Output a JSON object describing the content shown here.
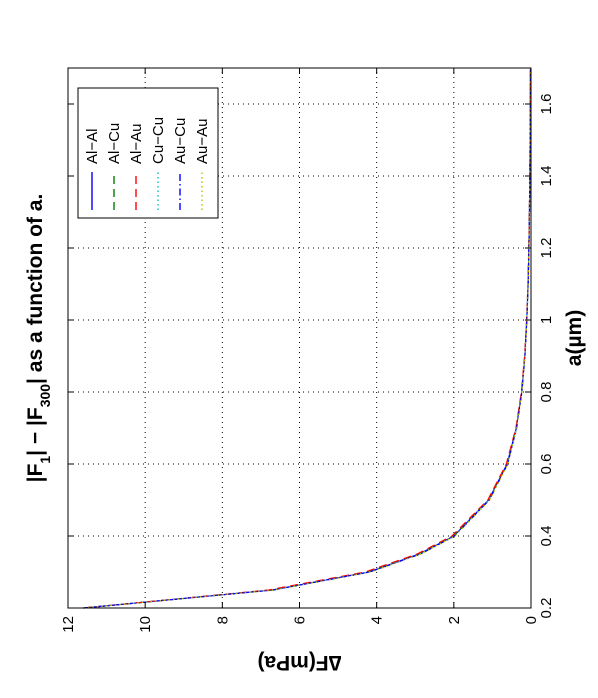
{
  "chart_data": {
    "type": "line",
    "title": {
      "prefix": "|F",
      "sub1": "1",
      "middle": "| − |F",
      "sub2": "300",
      "suffix": "| as a function of a."
    },
    "xlabel": "a(µm)",
    "ylabel": "∆F(mPa)",
    "xlim": [
      0.2,
      1.7
    ],
    "ylim": [
      0,
      12
    ],
    "x_ticks": [
      0.2,
      0.4,
      0.6,
      0.8,
      1,
      1.2,
      1.4,
      1.6
    ],
    "x_tick_labels": [
      "0.2",
      "0.4",
      "0.6",
      "0.8",
      "1",
      "1.2",
      "1.4",
      "1.6"
    ],
    "y_ticks": [
      0,
      2,
      4,
      6,
      8,
      10,
      12
    ],
    "y_tick_labels": [
      "0",
      "2",
      "4",
      "6",
      "8",
      "10",
      "12"
    ],
    "grid": true,
    "legend_placement": "top-right",
    "x": [
      0.2,
      0.25,
      0.3,
      0.35,
      0.4,
      0.5,
      0.6,
      0.7,
      0.8,
      0.9,
      1.0,
      1.1,
      1.2,
      1.3,
      1.4,
      1.5,
      1.6,
      1.7
    ],
    "series": [
      {
        "name": "Al−Al",
        "color": "#0000ff",
        "dash": "solid",
        "values": [
          11.6,
          6.7,
          4.2,
          2.9,
          2.0,
          1.1,
          0.62,
          0.38,
          0.24,
          0.16,
          0.11,
          0.075,
          0.055,
          0.04,
          0.03,
          0.022,
          0.017,
          0.013
        ]
      },
      {
        "name": "Al−Cu",
        "color": "#008000",
        "dash": "dashed",
        "values": [
          11.6,
          6.75,
          4.25,
          2.92,
          2.02,
          1.11,
          0.63,
          0.385,
          0.245,
          0.162,
          0.112,
          0.077,
          0.056,
          0.041,
          0.031,
          0.023,
          0.018,
          0.014
        ]
      },
      {
        "name": "Al−Au",
        "color": "#ff0000",
        "dash": "dashed",
        "values": [
          11.6,
          6.8,
          4.3,
          2.95,
          2.05,
          1.12,
          0.64,
          0.39,
          0.25,
          0.165,
          0.114,
          0.078,
          0.057,
          0.042,
          0.031,
          0.023,
          0.018,
          0.014
        ]
      },
      {
        "name": "Cu−Cu",
        "color": "#00bfbf",
        "dash": "dotted",
        "values": [
          11.6,
          6.7,
          4.2,
          2.88,
          1.99,
          1.09,
          0.61,
          0.375,
          0.238,
          0.158,
          0.109,
          0.074,
          0.054,
          0.039,
          0.029,
          0.022,
          0.017,
          0.013
        ]
      },
      {
        "name": "Au−Cu",
        "color": "#0000ff",
        "dash": "dashdot",
        "values": [
          11.6,
          6.68,
          4.18,
          2.86,
          1.98,
          1.08,
          0.605,
          0.372,
          0.236,
          0.156,
          0.108,
          0.073,
          0.053,
          0.039,
          0.029,
          0.021,
          0.016,
          0.013
        ]
      },
      {
        "name": "Au−Au",
        "color": "#bfbf00",
        "dash": "dotted",
        "values": [
          11.6,
          6.65,
          4.15,
          2.85,
          1.97,
          1.07,
          0.6,
          0.37,
          0.235,
          0.155,
          0.107,
          0.072,
          0.052,
          0.038,
          0.028,
          0.021,
          0.016,
          0.012
        ]
      }
    ]
  }
}
